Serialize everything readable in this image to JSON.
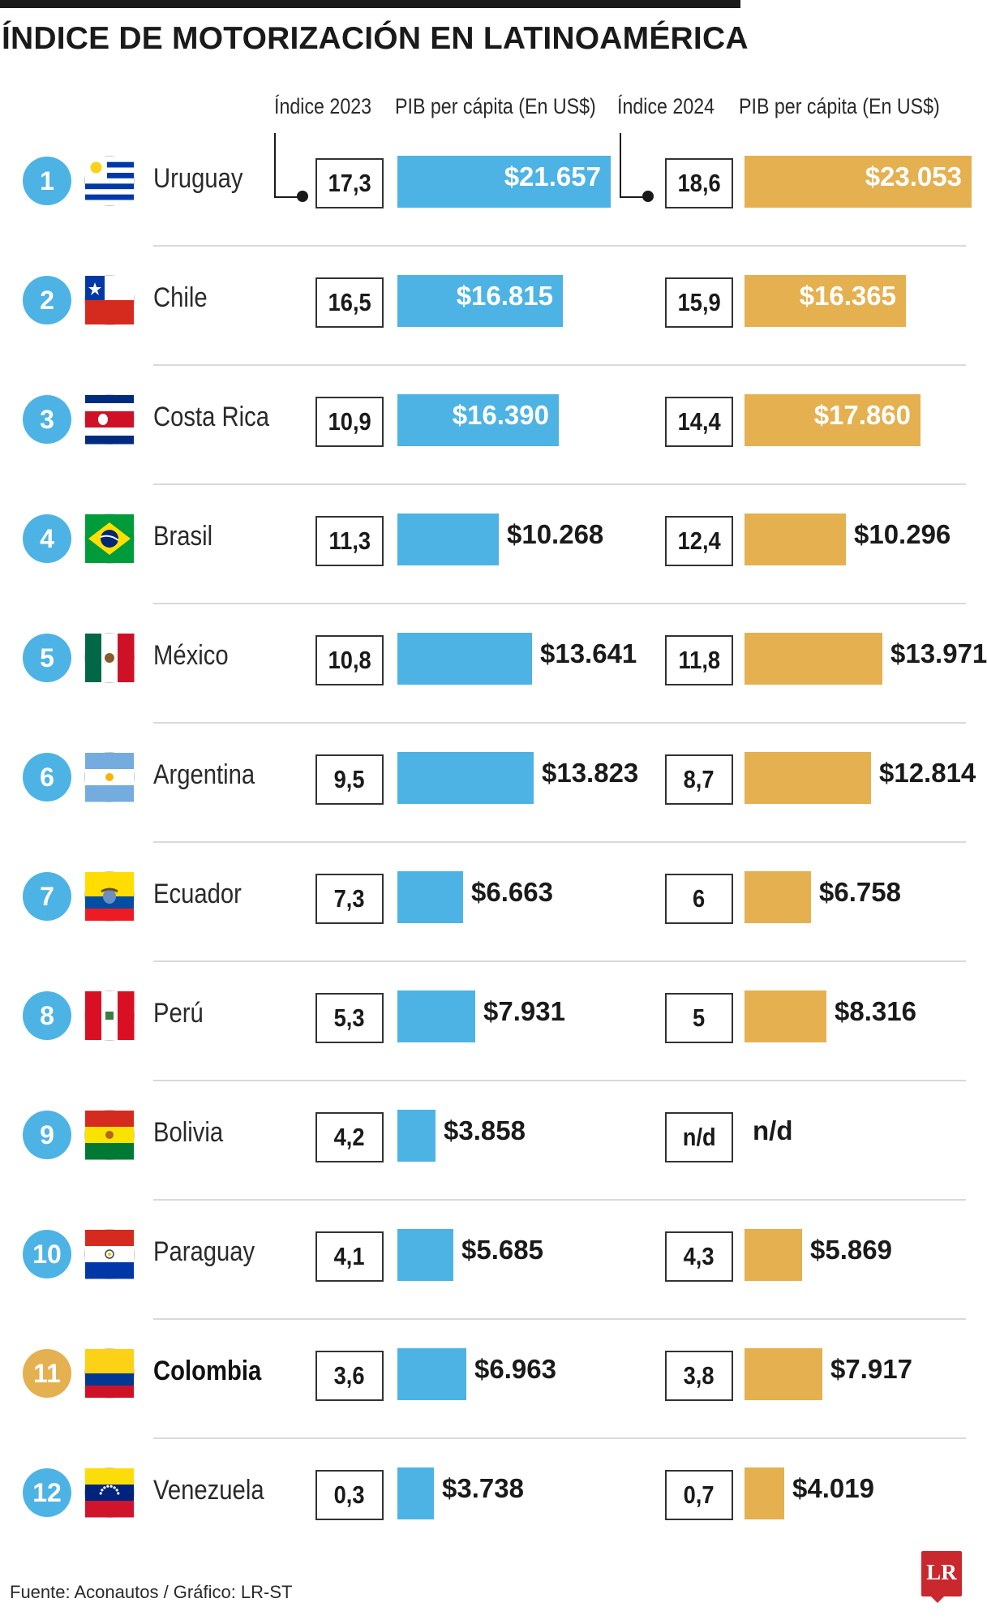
{
  "title": "ÍNDICE DE MOTORIZACIÓN  EN LATINOAMÉRICA",
  "headers": {
    "index_2023": "Índice 2023",
    "gdp_2023": "PIB per cápita (En US$)",
    "index_2024": "Índice 2024",
    "gdp_2024": "PIB per cápita (En US$)"
  },
  "source": "Fuente: Aconautos / Gráfico: LR-ST",
  "logo": "LR",
  "colors": {
    "bar_2023": "#4db3e4",
    "bar_2024": "#e5b050",
    "rank_default": "#4db3e4",
    "rank_highlight": "#e5b050"
  },
  "chart_data": {
    "type": "table",
    "columns": [
      "Índice 2023",
      "PIB per cápita (En US$)",
      "Índice 2024",
      "PIB per cápita (En US$)"
    ],
    "rows": [
      {
        "rank": "1",
        "country": "Uruguay",
        "flag_icon": "uruguay-flag-icon",
        "highlight": false,
        "index_2023": "17,3",
        "gdp_2023_label": "$21.657",
        "gdp_2023": 21657,
        "index_2024": "18,6",
        "gdp_2024_label": "$23.053",
        "gdp_2024": 23053
      },
      {
        "rank": "2",
        "country": "Chile",
        "flag_icon": "chile-flag-icon",
        "highlight": false,
        "index_2023": "16,5",
        "gdp_2023_label": "$16.815",
        "gdp_2023": 16815,
        "index_2024": "15,9",
        "gdp_2024_label": "$16.365",
        "gdp_2024": 16365
      },
      {
        "rank": "3",
        "country": "Costa Rica",
        "flag_icon": "costa-rica-flag-icon",
        "highlight": false,
        "index_2023": "10,9",
        "gdp_2023_label": "$16.390",
        "gdp_2023": 16390,
        "index_2024": "14,4",
        "gdp_2024_label": "$17.860",
        "gdp_2024": 17860
      },
      {
        "rank": "4",
        "country": "Brasil",
        "flag_icon": "brazil-flag-icon",
        "highlight": false,
        "index_2023": "11,3",
        "gdp_2023_label": "$10.268",
        "gdp_2023": 10268,
        "index_2024": "12,4",
        "gdp_2024_label": "$10.296",
        "gdp_2024": 10296
      },
      {
        "rank": "5",
        "country": "México",
        "flag_icon": "mexico-flag-icon",
        "highlight": false,
        "index_2023": "10,8",
        "gdp_2023_label": "$13.641",
        "gdp_2023": 13641,
        "index_2024": "11,8",
        "gdp_2024_label": "$13.971",
        "gdp_2024": 13971
      },
      {
        "rank": "6",
        "country": "Argentina",
        "flag_icon": "argentina-flag-icon",
        "highlight": false,
        "index_2023": "9,5",
        "gdp_2023_label": "$13.823",
        "gdp_2023": 13823,
        "index_2024": "8,7",
        "gdp_2024_label": "$12.814",
        "gdp_2024": 12814
      },
      {
        "rank": "7",
        "country": "Ecuador",
        "flag_icon": "ecuador-flag-icon",
        "highlight": false,
        "index_2023": "7,3",
        "gdp_2023_label": "$6.663",
        "gdp_2023": 6663,
        "index_2024": "6",
        "gdp_2024_label": "$6.758",
        "gdp_2024": 6758
      },
      {
        "rank": "8",
        "country": "Perú",
        "flag_icon": "peru-flag-icon",
        "highlight": false,
        "index_2023": "5,3",
        "gdp_2023_label": "$7.931",
        "gdp_2023": 7931,
        "index_2024": "5",
        "gdp_2024_label": "$8.316",
        "gdp_2024": 8316
      },
      {
        "rank": "9",
        "country": "Bolivia",
        "flag_icon": "bolivia-flag-icon",
        "highlight": false,
        "index_2023": "4,2",
        "gdp_2023_label": "$3.858",
        "gdp_2023": 3858,
        "index_2024": "n/d",
        "gdp_2024_label": "n/d",
        "gdp_2024": null
      },
      {
        "rank": "10",
        "country": "Paraguay",
        "flag_icon": "paraguay-flag-icon",
        "highlight": false,
        "index_2023": "4,1",
        "gdp_2023_label": "$5.685",
        "gdp_2023": 5685,
        "index_2024": "4,3",
        "gdp_2024_label": "$5.869",
        "gdp_2024": 5869
      },
      {
        "rank": "11",
        "country": "Colombia",
        "flag_icon": "colombia-flag-icon",
        "highlight": true,
        "index_2023": "3,6",
        "gdp_2023_label": "$6.963",
        "gdp_2023": 6963,
        "index_2024": "3,8",
        "gdp_2024_label": "$7.917",
        "gdp_2024": 7917
      },
      {
        "rank": "12",
        "country": "Venezuela",
        "flag_icon": "venezuela-flag-icon",
        "highlight": false,
        "index_2023": "0,3",
        "gdp_2023_label": "$3.738",
        "gdp_2023": 3738,
        "index_2024": "0,7",
        "gdp_2024_label": "$4.019",
        "gdp_2024": 4019
      }
    ]
  }
}
